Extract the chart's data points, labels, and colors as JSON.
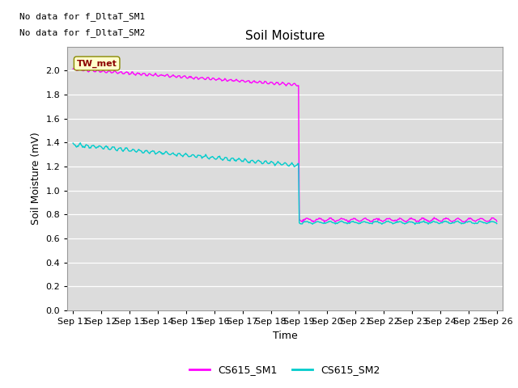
{
  "title": "Soil Moisture",
  "xlabel": "Time",
  "ylabel": "Soil Moisture (mV)",
  "background_color": "#dcdcdc",
  "fig_background": "#ffffff",
  "ylim": [
    0.0,
    2.2
  ],
  "yticks": [
    0.0,
    0.2,
    0.4,
    0.6,
    0.8,
    1.0,
    1.2,
    1.4,
    1.6,
    1.8,
    2.0
  ],
  "x_tick_labels": [
    "Sep 11",
    "Sep 12",
    "Sep 13",
    "Sep 14",
    "Sep 15",
    "Sep 16",
    "Sep 17",
    "Sep 18",
    "Sep 19",
    "Sep 20",
    "Sep 21",
    "Sep 22",
    "Sep 23",
    "Sep 24",
    "Sep 25",
    "Sep 26"
  ],
  "no_data_text1": "No data for f_DltaT_SM1",
  "no_data_text2": "No data for f_DltaT_SM2",
  "annotation_text": "TW_met",
  "sm1_color": "#ff00ff",
  "sm2_color": "#00cccc",
  "legend_sm1": "CS615_SM1",
  "legend_sm2": "CS615_SM2",
  "line_width": 1.0
}
